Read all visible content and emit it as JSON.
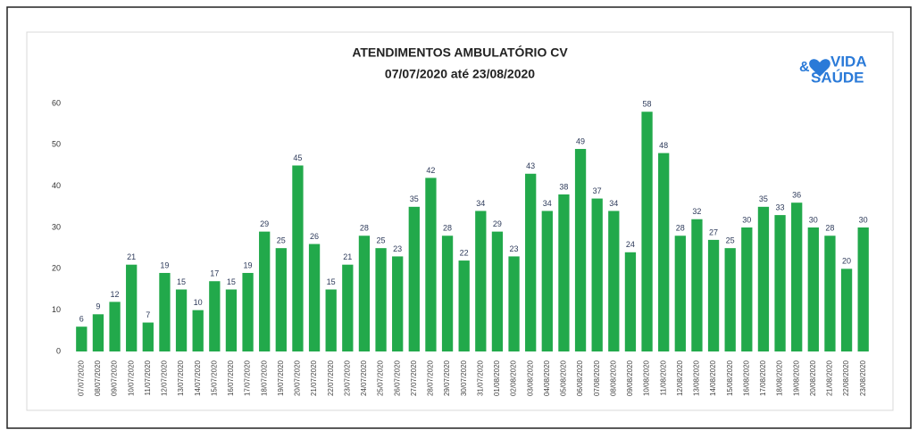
{
  "chart_data": {
    "type": "bar",
    "title": "ATENDIMENTOS AMBULATÓRIO  CV",
    "subtitle": "07/07/2020 até 23/08/2020",
    "logo": {
      "top": "VIDA",
      "amp": "&",
      "bottom": "SAÚDE"
    },
    "categories": [
      "07/07/2020",
      "08/07/2020",
      "09/07/2020",
      "10/07/2020",
      "11/07/2020",
      "12/07/2020",
      "13/07/2020",
      "14/07/2020",
      "15/07/2020",
      "16/07/2020",
      "17/07/2020",
      "18/07/2020",
      "19/07/2020",
      "20/07/2020",
      "21/07/2020",
      "22/07/2020",
      "23/07/2020",
      "24/07/2020",
      "25/07/2020",
      "26/07/2020",
      "27/07/2020",
      "28/07/2020",
      "29/07/2020",
      "30/07/2020",
      "31/07/2020",
      "01/08/2020",
      "02/08/2020",
      "03/08/2020",
      "04/08/2020",
      "05/08/2020",
      "06/08/2020",
      "07/08/2020",
      "08/08/2020",
      "09/08/2020",
      "10/08/2020",
      "11/08/2020",
      "12/08/2020",
      "13/08/2020",
      "14/08/2020",
      "15/08/2020",
      "16/08/2020",
      "17/08/2020",
      "18/08/2020",
      "19/08/2020",
      "20/08/2020",
      "21/08/2020",
      "22/08/2020",
      "23/08/2020"
    ],
    "values": [
      6,
      9,
      12,
      21,
      7,
      19,
      15,
      10,
      17,
      15,
      19,
      29,
      25,
      45,
      26,
      15,
      21,
      28,
      25,
      23,
      35,
      42,
      28,
      22,
      34,
      29,
      23,
      43,
      34,
      38,
      49,
      37,
      34,
      24,
      58,
      48,
      28,
      32,
      27,
      25,
      30,
      35,
      33,
      36,
      30,
      28,
      20,
      30
    ],
    "color": "#22a94b",
    "ylim": [
      0,
      60
    ],
    "yticks": [
      0,
      10,
      20,
      30,
      40,
      50,
      60
    ],
    "grid": false
  }
}
